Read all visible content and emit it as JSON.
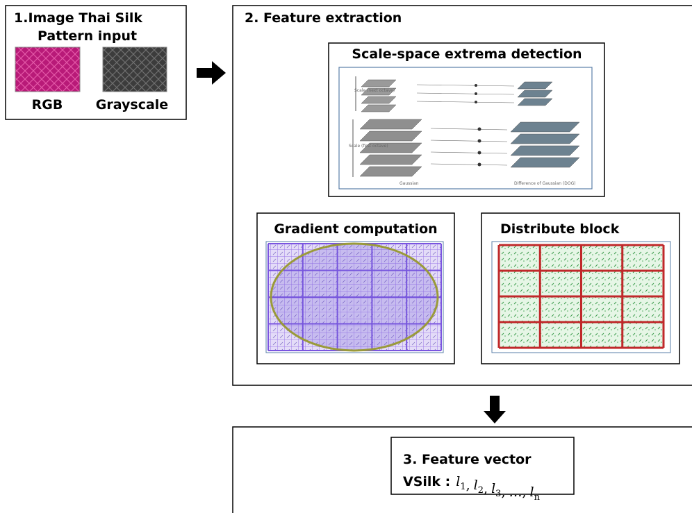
{
  "input": {
    "title_lines": [
      "1.Image Thai Silk",
      "Pattern input"
    ],
    "images": [
      {
        "label": "RGB"
      },
      {
        "label": "Grayscale"
      }
    ]
  },
  "extraction": {
    "title": "2. Feature extraction",
    "panels": [
      {
        "title": "Scale-space extrema detection",
        "figure_labels": [
          "Scale (next octave)",
          "Scale (first octave)",
          "Gaussian",
          "Difference of Gaussian (DOG)"
        ]
      },
      {
        "title": "Gradient computation"
      },
      {
        "title": "Distribute block"
      }
    ]
  },
  "output": {
    "title": "3. Feature vector",
    "vector_name": "VSilk :",
    "separator": ",",
    "terms": [
      {
        "symbol": "l",
        "index": "1"
      },
      {
        "symbol": "l",
        "index": "2"
      },
      {
        "symbol": "l",
        "index": "3"
      },
      {
        "symbol": "…"
      },
      {
        "symbol": "l",
        "index": "n"
      }
    ]
  }
}
